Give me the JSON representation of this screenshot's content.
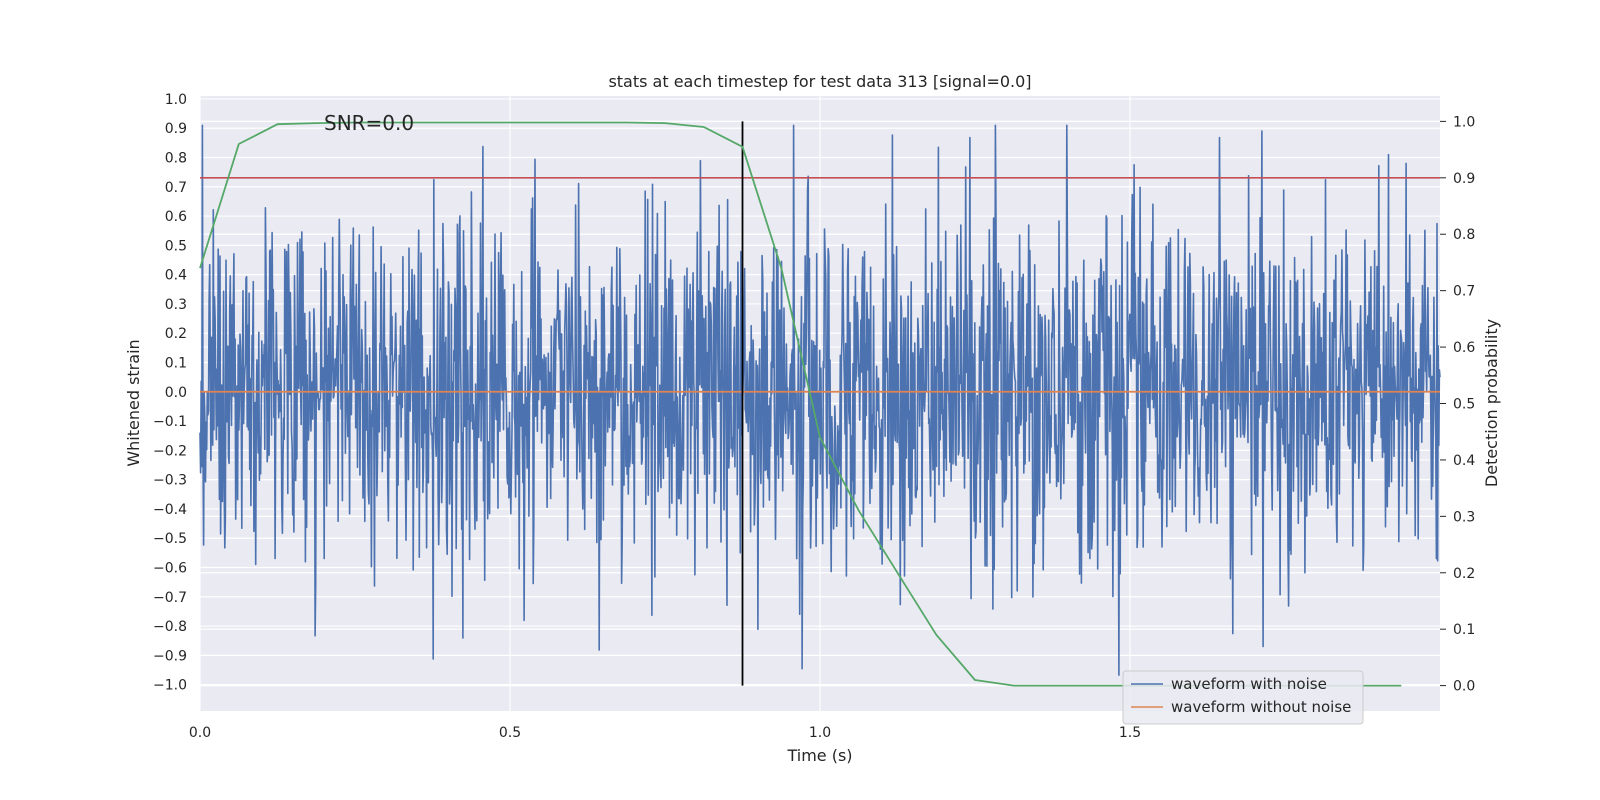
{
  "chart_data": {
    "type": "line",
    "title": "stats at each timestep for test data 313 [signal=0.0]",
    "xlabel": "Time (s)",
    "ylabel": "Whitened strain",
    "y2label": "Detection probability",
    "xlim": [
      0.0,
      2.0
    ],
    "ylim": [
      -1.09,
      1.01
    ],
    "y2lim": [
      -0.045,
      1.045
    ],
    "grid": true,
    "legend_position": "lower right",
    "x_ticks": [
      0.0,
      0.5,
      1.0,
      1.5
    ],
    "x_tick_labels": [
      "0.0",
      "0.5",
      "1.0",
      "1.5"
    ],
    "y_ticks": [
      1.0,
      0.9,
      0.8,
      0.7,
      0.6,
      0.5,
      0.4,
      0.3,
      0.2,
      0.1,
      0.0,
      -0.1,
      -0.2,
      -0.3,
      -0.4,
      -0.5,
      -0.6,
      -0.7,
      -0.8,
      -0.9,
      -1.0
    ],
    "y_tick_labels": [
      "1.0",
      "0.9",
      "0.8",
      "0.7",
      "0.6",
      "0.5",
      "0.4",
      "0.3",
      "0.2",
      "0.1",
      "0.0",
      "−0.1",
      "−0.2",
      "−0.3",
      "−0.4",
      "−0.5",
      "−0.6",
      "−0.7",
      "−0.8",
      "−0.9",
      "−1.0"
    ],
    "y2_ticks": [
      1.0,
      0.9,
      0.8,
      0.7,
      0.6,
      0.5,
      0.4,
      0.3,
      0.2,
      0.1,
      0.0
    ],
    "y2_tick_labels": [
      "1.0",
      "0.9",
      "0.8",
      "0.7",
      "0.6",
      "0.5",
      "0.4",
      "0.3",
      "0.2",
      "0.1",
      "0.0"
    ],
    "annotation": "SNR=0.0",
    "annotation_at": {
      "x": 0.2,
      "y": 0.9
    },
    "series": [
      {
        "name": "waveform with noise",
        "color": "#4c72b0",
        "axis": "left",
        "kind": "noise",
        "n_points": 2048,
        "std": 0.29,
        "range": [
          -1.0,
          0.91
        ]
      },
      {
        "name": "waveform without noise",
        "color": "#dd8452",
        "axis": "left",
        "x": [
          0.0,
          2.0
        ],
        "y": [
          0.0,
          0.0
        ]
      },
      {
        "name": "detection probability",
        "color": "#55a868",
        "axis": "right",
        "x": [
          0.0,
          0.0625,
          0.125,
          0.1875,
          0.25,
          0.3125,
          0.375,
          0.4375,
          0.5,
          0.5625,
          0.625,
          0.6875,
          0.75,
          0.8125,
          0.875,
          0.9375,
          1.0,
          1.0625,
          1.125,
          1.1875,
          1.25,
          1.3125,
          1.375,
          1.4375,
          1.5,
          1.5625,
          1.625,
          1.6875,
          1.75,
          1.8125,
          1.875,
          1.9375
        ],
        "y": [
          0.74,
          0.96,
          0.995,
          0.997,
          0.998,
          0.998,
          0.998,
          0.998,
          0.998,
          0.998,
          0.998,
          0.998,
          0.997,
          0.99,
          0.955,
          0.74,
          0.44,
          0.31,
          0.2,
          0.09,
          0.01,
          0.0,
          0.0,
          0.0,
          0.0,
          0.0,
          0.0,
          0.0,
          0.0,
          0.0,
          0.0,
          0.0
        ]
      }
    ],
    "threshold_line": {
      "axis": "right",
      "y": 0.9,
      "color": "#c44e52"
    },
    "vertical_marker": {
      "x": 0.875,
      "color": "#000000"
    }
  }
}
